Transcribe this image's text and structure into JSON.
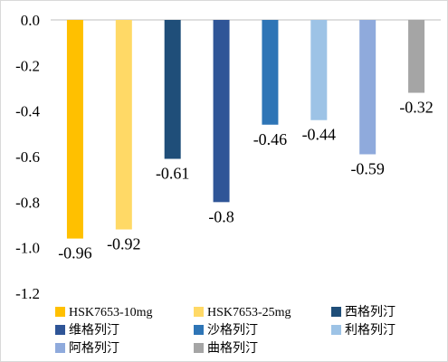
{
  "chart_data": {
    "type": "bar",
    "categories": [
      "HSK7653-10mg",
      "HSK7653-25mg",
      "西格列汀",
      "维格列汀",
      "沙格列汀",
      "利格列汀",
      "阿格列汀",
      "曲格列汀"
    ],
    "values": [
      -0.96,
      -0.92,
      -0.61,
      -0.8,
      -0.46,
      -0.44,
      -0.59,
      -0.32
    ],
    "data_labels": [
      "-0.96",
      "-0.92",
      "-0.61",
      "-0.8",
      "-0.46",
      "-0.44",
      "-0.59",
      "-0.32"
    ],
    "colors": [
      "#ffc000",
      "#ffd966",
      "#1f4e79",
      "#2f5597",
      "#2e75b6",
      "#9dc3e6",
      "#8faadc",
      "#a5a5a5"
    ],
    "ylim": [
      -1.2,
      0
    ],
    "yticks": [
      "0.0",
      "-0.2",
      "-0.4",
      "-0.6",
      "-0.8",
      "-1.0",
      "-1.2"
    ],
    "ytick_values": [
      0,
      -0.2,
      -0.4,
      -0.6,
      -0.8,
      -1.0,
      -1.2
    ],
    "legend_position": "bottom",
    "grid": false,
    "title": "",
    "xlabel": "",
    "ylabel": ""
  }
}
